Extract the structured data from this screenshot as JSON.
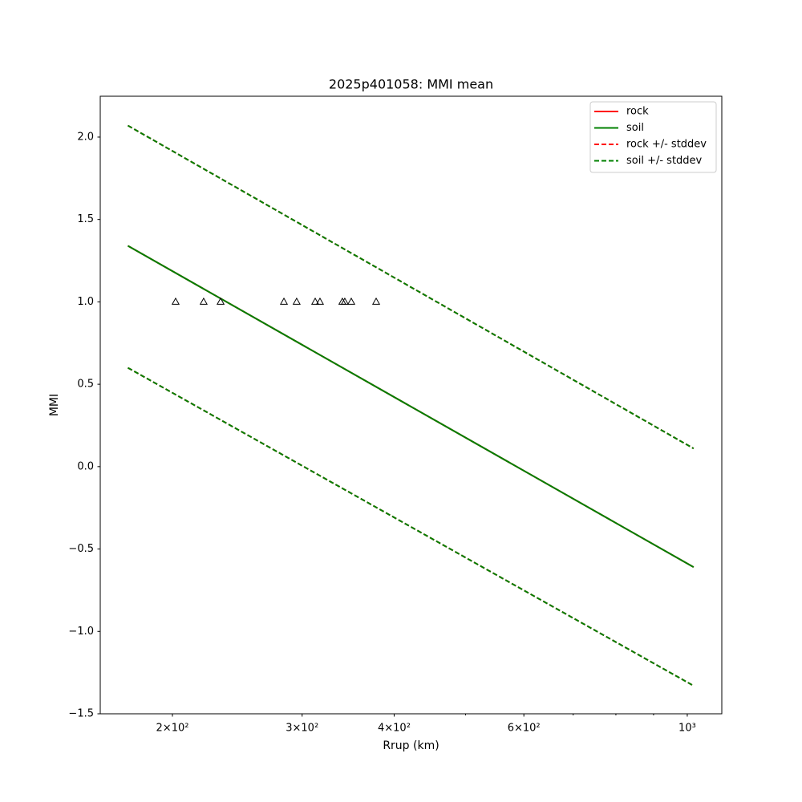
{
  "chart_data": {
    "type": "line",
    "title": "2025p401058: MMI mean",
    "xlabel": "Rrup (km)",
    "ylabel": "MMI",
    "xscale": "log",
    "xlim": [
      159.6,
      1114
    ],
    "ylim": [
      -1.5,
      2.248
    ],
    "xticks": [
      {
        "value": 200,
        "label": "2×10²"
      },
      {
        "value": 300,
        "label": "3×10²"
      },
      {
        "value": 400,
        "label": "4×10²"
      },
      {
        "value": 600,
        "label": "6×10²"
      },
      {
        "value": 1000,
        "label": "10³"
      }
    ],
    "xminor_ticks": [
      500,
      700,
      800,
      900
    ],
    "yticks": [
      {
        "value": -1.5,
        "label": "−1.5"
      },
      {
        "value": -1,
        "label": "−1.0"
      },
      {
        "value": -0.5,
        "label": "−0.5"
      },
      {
        "value": 0,
        "label": "0.0"
      },
      0.5,
      {
        "value": 1,
        "label": "1.0"
      },
      1.5,
      {
        "value": 2,
        "label": "2.0"
      }
    ],
    "legend": "upper right",
    "x": [
      174,
      1020
    ],
    "series": [
      {
        "name": "rock",
        "color": "#ff0000",
        "dashed": false,
        "values": [
          1.34,
          -0.61
        ]
      },
      {
        "name": "soil",
        "color": "#008000",
        "dashed": false,
        "values": [
          1.34,
          -0.61
        ]
      },
      {
        "name": "rock +/- stddev",
        "color": "#ff0000",
        "dashed": true,
        "upper": [
          2.07,
          0.11
        ],
        "lower": [
          0.6,
          -1.33
        ]
      },
      {
        "name": "soil +/- stddev",
        "color": "#008000",
        "dashed": true,
        "upper": [
          2.07,
          0.11
        ],
        "lower": [
          0.6,
          -1.33
        ]
      }
    ],
    "points": {
      "marker": "triangle",
      "color": "#000000",
      "x": [
        202,
        220.5,
        232.5,
        283.4,
        294.9,
        312.5,
        317.2,
        340.2,
        342.8,
        349.8,
        378.1
      ],
      "values": [
        1,
        1,
        1,
        1,
        1,
        1,
        1,
        1,
        1,
        1,
        1
      ]
    }
  }
}
